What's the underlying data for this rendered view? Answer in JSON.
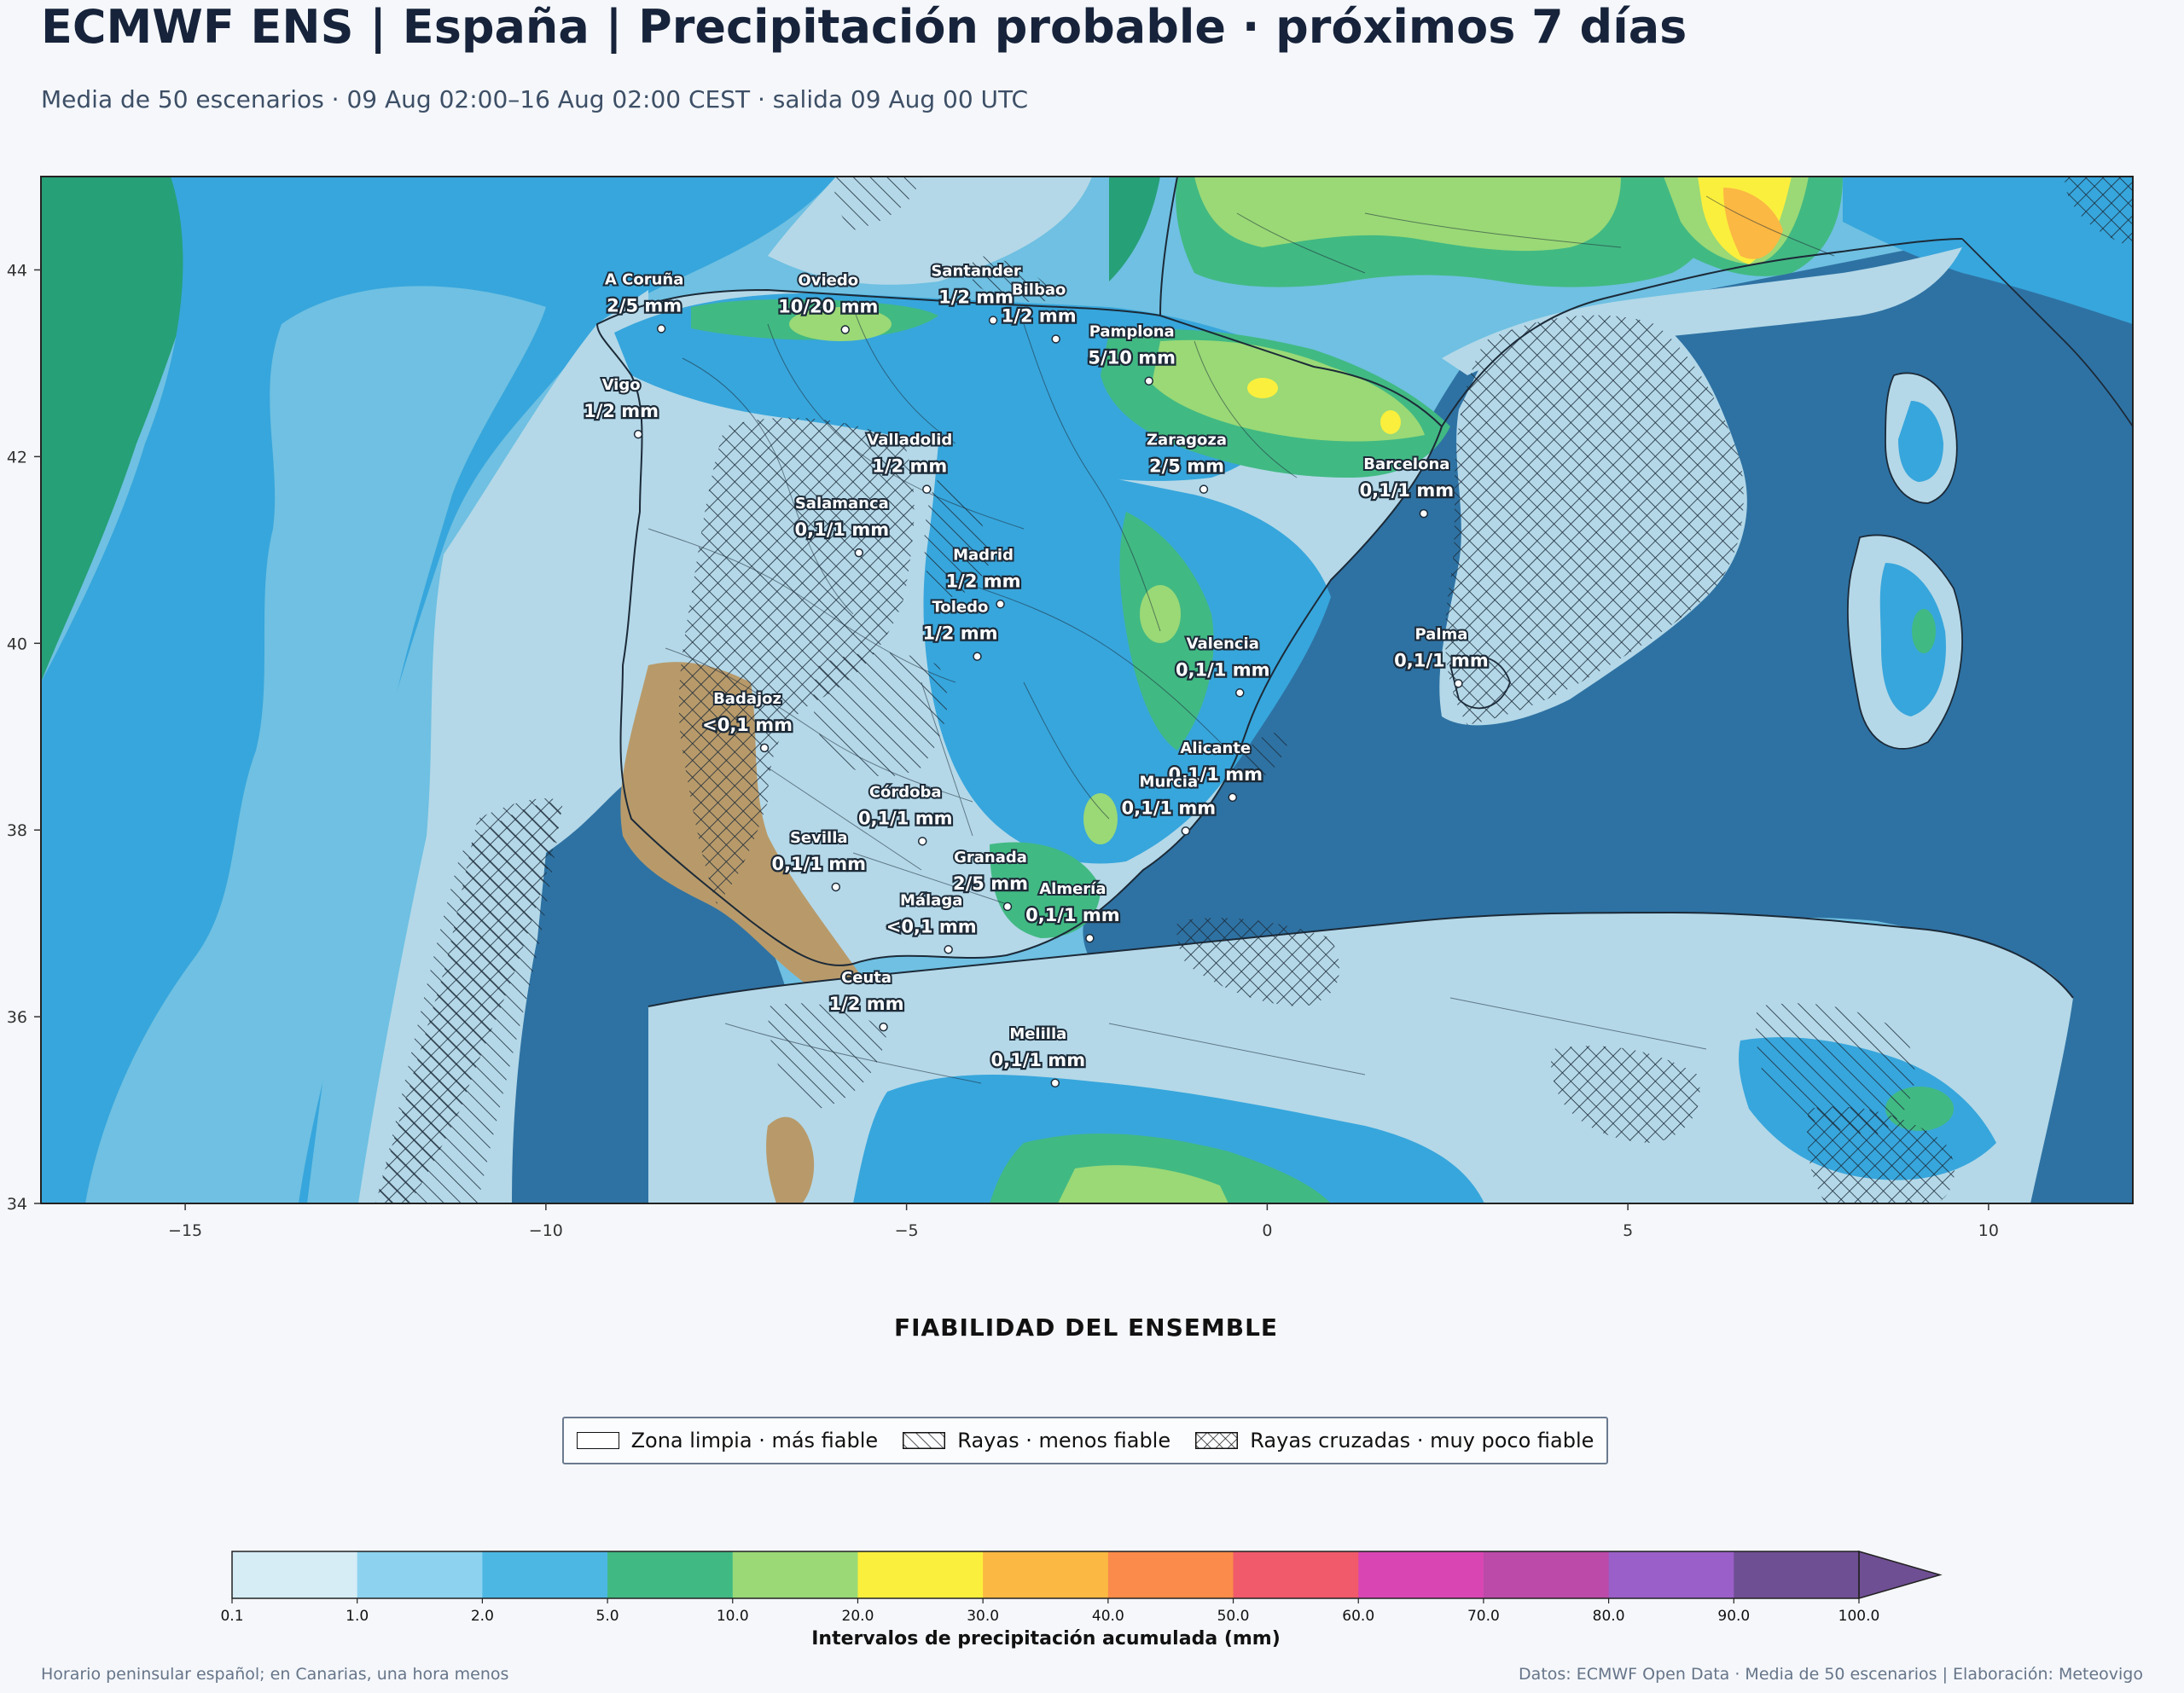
{
  "header": {
    "title": "ECMWF ENS | España | Precipitación probable · próximos 7 días",
    "subtitle": "Media de 50 escenarios · 09 Aug 02:00–16 Aug 02:00 CEST · salida 09 Aug 00 UTC"
  },
  "map": {
    "lon_range": [
      -17,
      12
    ],
    "lat_range": [
      34,
      45
    ],
    "x_ticks": [
      -15,
      -10,
      -5,
      0,
      5,
      10
    ],
    "y_ticks": [
      34,
      36,
      38,
      40,
      42,
      44
    ],
    "colors": {
      "sea": "#2e72a3",
      "land_dry": "#b89a6a",
      "ocean_light": "#b4d8e8",
      "outline": "#1c2a38"
    },
    "cities": [
      {
        "name": "A Coruña",
        "value": "2/5 mm",
        "lon": -8.4,
        "lat": 43.37
      },
      {
        "name": "Oviedo",
        "value": "10/20 mm",
        "lon": -5.85,
        "lat": 43.36
      },
      {
        "name": "Santander",
        "value": "1/2 mm",
        "lon": -3.8,
        "lat": 43.46
      },
      {
        "name": "Pamplona",
        "value": "5/10 mm",
        "lon": -1.64,
        "lat": 42.81
      },
      {
        "name": "Bilbao",
        "value": "1/2 mm",
        "lon": -2.93,
        "lat": 43.26
      },
      {
        "name": "Vigo",
        "value": "1/2 mm",
        "lon": -8.72,
        "lat": 42.24
      },
      {
        "name": "Valladolid",
        "value": "1/2 mm",
        "lon": -4.72,
        "lat": 41.65
      },
      {
        "name": "Zaragoza",
        "value": "2/5 mm",
        "lon": -0.88,
        "lat": 41.65
      },
      {
        "name": "Barcelona",
        "value": "0,1/1 mm",
        "lon": 2.17,
        "lat": 41.39
      },
      {
        "name": "Salamanca",
        "value": "0,1/1 mm",
        "lon": -5.66,
        "lat": 40.97
      },
      {
        "name": "Madrid",
        "value": "1/2 mm",
        "lon": -3.7,
        "lat": 40.42
      },
      {
        "name": "Valencia",
        "value": "0,1/1 mm",
        "lon": -0.38,
        "lat": 39.47
      },
      {
        "name": "Badajoz",
        "value": "<0,1 mm",
        "lon": -6.97,
        "lat": 38.88
      },
      {
        "name": "Toledo",
        "value": "1/2 mm",
        "lon": -4.02,
        "lat": 39.86
      },
      {
        "name": "Palma",
        "value": "0,1/1 mm",
        "lon": 2.65,
        "lat": 39.57
      },
      {
        "name": "Córdoba",
        "value": "0,1/1 mm",
        "lon": -4.78,
        "lat": 37.88
      },
      {
        "name": "Alicante",
        "value": "0,1/1 mm",
        "lon": -0.48,
        "lat": 38.35
      },
      {
        "name": "Murcia",
        "value": "0,1/1 mm",
        "lon": -1.13,
        "lat": 37.99
      },
      {
        "name": "Granada",
        "value": "2/5 mm",
        "lon": -3.6,
        "lat": 37.18
      },
      {
        "name": "Sevilla",
        "value": "0,1/1 mm",
        "lon": -5.98,
        "lat": 37.39
      },
      {
        "name": "Almería",
        "value": "0,1/1 mm",
        "lon": -2.46,
        "lat": 36.84
      },
      {
        "name": "Málaga",
        "value": "<0,1 mm",
        "lon": -4.42,
        "lat": 36.72
      },
      {
        "name": "Ceuta",
        "value": "1/2 mm",
        "lon": -5.32,
        "lat": 35.89
      },
      {
        "name": "Melilla",
        "value": "0,1/1 mm",
        "lon": -2.94,
        "lat": 35.29
      }
    ]
  },
  "reliability": {
    "title": "FIABILIDAD DEL ENSEMBLE",
    "items": [
      {
        "label": "Zona limpia · más fiable",
        "pattern": "none"
      },
      {
        "label": "Rayas · menos fiable",
        "pattern": "hatch"
      },
      {
        "label": "Rayas cruzadas · muy poco fiable",
        "pattern": "crosshatch"
      }
    ]
  },
  "colorbar": {
    "title": "Intervalos de precipitación acumulada (mm)",
    "ticks": [
      "0.1",
      "1.0",
      "2.0",
      "5.0",
      "10.0",
      "20.0",
      "30.0",
      "40.0",
      "50.0",
      "60.0",
      "70.0",
      "80.0",
      "90.0",
      "100.0"
    ],
    "colors": [
      "#d6edf6",
      "#8dd3ef",
      "#4db7e3",
      "#41b983",
      "#9ad976",
      "#fbef3d",
      "#fbb843",
      "#fb8b4a",
      "#f05a6a",
      "#d946b4",
      "#bb4aa9",
      "#9a5fc8",
      "#6f4f93"
    ]
  },
  "footer": {
    "left": "Horario peninsular español; en Canarias, una hora menos",
    "right": "Datos: ECMWF Open Data · Media de 50 escenarios | Elaboración: Meteovigo"
  }
}
